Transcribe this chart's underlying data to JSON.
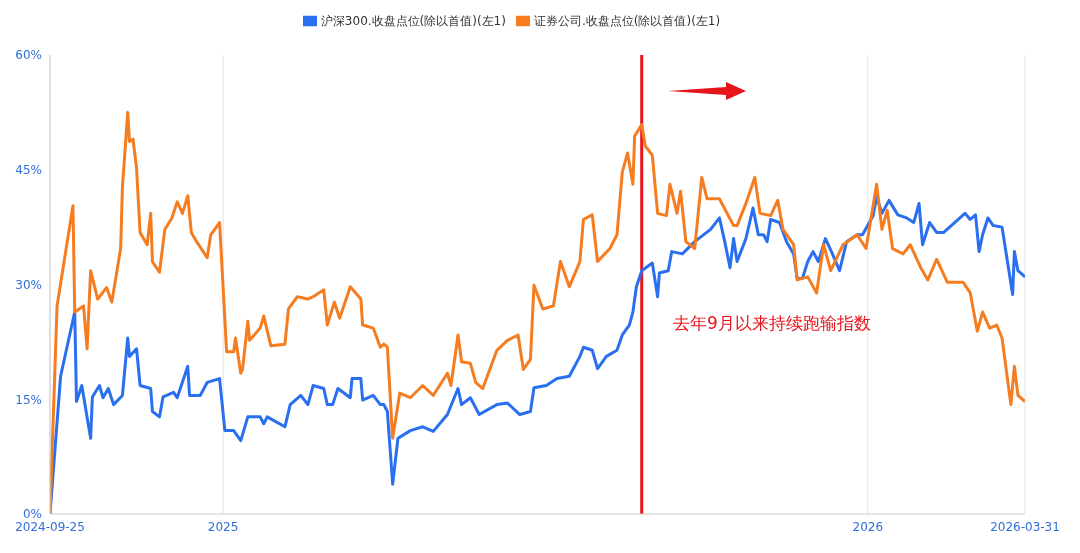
{
  "chart_data": {
    "type": "line",
    "xlim": [
      "2024-09-25",
      "2026-03-31"
    ],
    "xticks": [
      "2024-09-25",
      {
        "value": "2025-01-01",
        "label": "2025"
      },
      {
        "value": "2026-01-01",
        "label": "2026"
      },
      "2026-03-31"
    ],
    "ylim": [
      0,
      60
    ],
    "yticks": [
      {
        "value": 0,
        "label": "0%"
      },
      {
        "value": 15,
        "label": "15%"
      },
      {
        "value": 30,
        "label": "30%"
      },
      {
        "value": 45,
        "label": "45%"
      },
      {
        "value": 60,
        "label": "60%"
      }
    ],
    "grid": true,
    "legend": "top",
    "marker": "none",
    "line_style": "solid",
    "series": [
      {
        "name": "沪深300.收盘点位(除以首值)(左1)",
        "color": "#2a6ff0",
        "x": [
          "2024-09-25",
          "2024-10-01",
          "2024-10-09",
          "2024-10-10",
          "2024-10-13",
          "2024-10-18",
          "2024-10-19",
          "2024-10-23",
          "2024-10-25",
          "2024-10-28",
          "2024-10-31",
          "2024-11-05",
          "2024-11-08",
          "2024-11-09",
          "2024-11-13",
          "2024-11-15",
          "2024-11-21",
          "2024-11-22",
          "2024-11-26",
          "2024-11-28",
          "2024-12-04",
          "2024-12-06",
          "2024-12-12",
          "2024-12-13",
          "2024-12-19",
          "2024-12-23",
          "2024-12-30",
          "2025-01-02",
          "2025-01-07",
          "2025-01-11",
          "2025-01-15",
          "2025-01-22",
          "2025-01-24",
          "2025-01-26",
          "2025-02-05",
          "2025-02-08",
          "2025-02-14",
          "2025-02-18",
          "2025-02-21",
          "2025-02-27",
          "2025-03-01",
          "2025-03-04",
          "2025-03-07",
          "2025-03-14",
          "2025-03-15",
          "2025-03-20",
          "2025-03-21",
          "2025-03-27",
          "2025-03-31",
          "2025-04-02",
          "2025-04-04",
          "2025-04-07",
          "2025-04-10",
          "2025-04-17",
          "2025-04-24",
          "2025-04-30",
          "2025-05-08",
          "2025-05-14",
          "2025-05-16",
          "2025-05-21",
          "2025-05-26",
          "2025-05-29",
          "2025-06-05",
          "2025-06-11",
          "2025-06-18",
          "2025-06-24",
          "2025-06-26",
          "2025-07-03",
          "2025-07-09",
          "2025-07-16",
          "2025-07-22",
          "2025-07-24",
          "2025-07-29",
          "2025-08-01",
          "2025-08-06",
          "2025-08-12",
          "2025-08-15",
          "2025-08-19",
          "2025-08-21",
          "2025-08-23",
          "2025-08-26",
          "2025-09-01",
          "2025-09-04",
          "2025-09-05",
          "2025-09-10",
          "2025-09-12",
          "2025-09-18",
          "2025-09-25",
          "2025-10-04",
          "2025-10-09",
          "2025-10-12",
          "2025-10-15",
          "2025-10-17",
          "2025-10-19",
          "2025-10-24",
          "2025-10-28",
          "2025-10-31",
          "2025-11-03",
          "2025-11-05",
          "2025-11-07",
          "2025-11-12",
          "2025-11-16",
          "2025-11-20",
          "2025-11-22",
          "2025-11-25",
          "2025-11-28",
          "2025-12-01",
          "2025-12-04",
          "2025-12-08",
          "2025-12-12",
          "2025-12-16",
          "2025-12-20",
          "2025-12-26",
          "2025-12-29",
          "2026-01-04",
          "2026-01-06",
          "2026-01-09",
          "2026-01-13",
          "2026-01-18",
          "2026-01-23",
          "2026-01-27",
          "2026-01-30",
          "2026-02-01",
          "2026-02-05",
          "2026-02-09",
          "2026-02-13",
          "2026-02-25",
          "2026-02-28",
          "2026-03-03",
          "2026-03-05",
          "2026-03-07",
          "2026-03-10",
          "2026-03-13",
          "2026-03-18",
          "2026-03-24",
          "2026-03-25",
          "2026-03-27",
          "2026-03-31"
        ],
        "values": [
          0,
          18,
          26.4,
          14.7,
          16.8,
          9.9,
          15.3,
          16.8,
          15.2,
          16.4,
          14.3,
          15.5,
          23,
          20.6,
          21.6,
          16.8,
          16.4,
          13.4,
          12.7,
          15.3,
          15.9,
          15.2,
          19.3,
          15.5,
          15.5,
          17.2,
          17.7,
          10.9,
          10.9,
          9.6,
          12.7,
          12.7,
          11.8,
          12.7,
          11.4,
          14.3,
          15.5,
          14.3,
          16.8,
          16.4,
          14.3,
          14.3,
          16.4,
          15.2,
          17.7,
          17.7,
          14.9,
          15.5,
          14.3,
          14.3,
          13.4,
          3.9,
          9.9,
          10.9,
          11.4,
          10.8,
          13,
          16.4,
          14.3,
          15.2,
          13,
          13.4,
          14.3,
          14.5,
          13,
          13.4,
          16.5,
          16.8,
          17.7,
          18,
          20.6,
          21.8,
          21.4,
          19,
          20.6,
          21.4,
          23.4,
          24.7,
          26.4,
          29.7,
          31.8,
          32.8,
          28.4,
          31.5,
          31.8,
          34.3,
          34,
          35.6,
          37.2,
          38.7,
          35.6,
          32.2,
          36,
          33,
          36,
          40,
          36.5,
          36.5,
          35.6,
          38.5,
          38.1,
          35.6,
          34,
          30.8,
          30.8,
          33,
          34.3,
          33,
          36,
          34,
          31.8,
          35.6,
          36.5,
          36.5,
          39,
          41.5,
          39.3,
          41,
          39.1,
          38.7,
          38.1,
          40.6,
          35.2,
          38.1,
          36.8,
          36.8,
          39.3,
          38.5,
          39.1,
          34.3,
          36.5,
          38.7,
          37.7,
          37.5,
          28.7,
          34.3,
          31.8,
          31
        ]
      },
      {
        "name": "证券公司.收盘点位(除以首值)(左1)",
        "color": "#f57d20",
        "x": [
          "2024-09-25",
          "2024-09-29",
          "2024-10-08",
          "2024-10-09",
          "2024-10-14",
          "2024-10-16",
          "2024-10-18",
          "2024-10-22",
          "2024-10-27",
          "2024-10-30",
          "2024-11-04",
          "2024-11-05",
          "2024-11-08",
          "2024-11-09",
          "2024-11-11",
          "2024-11-13",
          "2024-11-15",
          "2024-11-19",
          "2024-11-21",
          "2024-11-22",
          "2024-11-26",
          "2024-11-29",
          "2024-12-03",
          "2024-12-06",
          "2024-12-09",
          "2024-12-12",
          "2024-12-14",
          "2024-12-17",
          "2024-12-23",
          "2024-12-25",
          "2024-12-30",
          "2025-01-03",
          "2025-01-07",
          "2025-01-08",
          "2025-01-11",
          "2025-01-12",
          "2025-01-15",
          "2025-01-16",
          "2025-01-22",
          "2025-01-24",
          "2025-01-28",
          "2025-02-05",
          "2025-02-07",
          "2025-02-12",
          "2025-02-18",
          "2025-02-21",
          "2025-02-27",
          "2025-03-01",
          "2025-03-05",
          "2025-03-08",
          "2025-03-14",
          "2025-03-20",
          "2025-03-21",
          "2025-03-27",
          "2025-03-31",
          "2025-04-02",
          "2025-04-04",
          "2025-04-07",
          "2025-04-11",
          "2025-04-17",
          "2025-04-24",
          "2025-04-30",
          "2025-05-08",
          "2025-05-10",
          "2025-05-14",
          "2025-05-16",
          "2025-05-21",
          "2025-05-24",
          "2025-05-28",
          "2025-06-05",
          "2025-06-11",
          "2025-06-17",
          "2025-06-20",
          "2025-06-24",
          "2025-06-26",
          "2025-07-01",
          "2025-07-07",
          "2025-07-11",
          "2025-07-16",
          "2025-07-22",
          "2025-07-24",
          "2025-07-29",
          "2025-08-01",
          "2025-08-08",
          "2025-08-12",
          "2025-08-15",
          "2025-08-18",
          "2025-08-21",
          "2025-08-22",
          "2025-08-26",
          "2025-08-28",
          "2025-09-01",
          "2025-09-04",
          "2025-09-09",
          "2025-09-11",
          "2025-09-15",
          "2025-09-17",
          "2025-09-20",
          "2025-09-25",
          "2025-09-29",
          "2025-10-02",
          "2025-10-09",
          "2025-10-17",
          "2025-10-19",
          "2025-10-24",
          "2025-10-29",
          "2025-11-01",
          "2025-11-07",
          "2025-11-11",
          "2025-11-14",
          "2025-11-20",
          "2025-11-22",
          "2025-11-28",
          "2025-12-03",
          "2025-12-07",
          "2025-12-11",
          "2025-12-18",
          "2025-12-26",
          "2025-12-31",
          "2026-01-06",
          "2026-01-09",
          "2026-01-12",
          "2026-01-15",
          "2026-01-21",
          "2026-01-25",
          "2026-01-31",
          "2026-02-04",
          "2026-02-09",
          "2026-02-15",
          "2026-02-24",
          "2026-02-28",
          "2026-03-04",
          "2026-03-07",
          "2026-03-11",
          "2026-03-15",
          "2026-03-18",
          "2026-03-23",
          "2026-03-25",
          "2026-03-27",
          "2026-03-31"
        ],
        "values": [
          0,
          27.2,
          40.3,
          26.4,
          27.2,
          21.6,
          31.8,
          28.1,
          29.6,
          27.7,
          34.7,
          42.7,
          52.5,
          48.7,
          49,
          45.2,
          36.8,
          35.2,
          39.3,
          33,
          31.6,
          37.2,
          38.7,
          40.8,
          39.3,
          41.6,
          36.8,
          35.6,
          33.5,
          36.5,
          38.1,
          21.2,
          21.2,
          23,
          18.4,
          18.9,
          25.2,
          22.7,
          24.3,
          25.9,
          22,
          22.2,
          26.8,
          28.4,
          28.1,
          28.4,
          29.3,
          24.7,
          27.7,
          25.6,
          29.7,
          28.1,
          24.7,
          24.3,
          21.8,
          22.2,
          21.8,
          9.9,
          15.8,
          15.2,
          16.8,
          15.5,
          18.4,
          16.8,
          23.4,
          19.9,
          19.7,
          17.2,
          16.4,
          21.4,
          22.7,
          23.4,
          18.9,
          20.2,
          29.9,
          26.8,
          27.2,
          33,
          29.7,
          33,
          38.5,
          39.1,
          33,
          34.7,
          36.5,
          44.7,
          47.2,
          43.1,
          49.4,
          50.9,
          48.1,
          46.9,
          39.3,
          39,
          43.1,
          39.3,
          42.2,
          35.6,
          34.7,
          44,
          41.2,
          41.2,
          37.7,
          37.7,
          40.6,
          44,
          39.3,
          39,
          41,
          37.2,
          35.2,
          30.6,
          31,
          28.9,
          35.2,
          31.8,
          35.2,
          36.5,
          34.7,
          43.1,
          37.2,
          39.7,
          34.7,
          34,
          35.2,
          32.2,
          30.6,
          33.3,
          30.3,
          30.3,
          28.9,
          23.9,
          26.4,
          24.3,
          24.7,
          23,
          14.3,
          19.3,
          15.5,
          14.7
        ]
      }
    ],
    "ref_lines": [
      {
        "axis": "x",
        "value": "2025-08-26",
        "color": "#e8141b",
        "line_style": "solid"
      }
    ],
    "annotations": [
      "去年9月以来持续跑输指数"
    ]
  }
}
